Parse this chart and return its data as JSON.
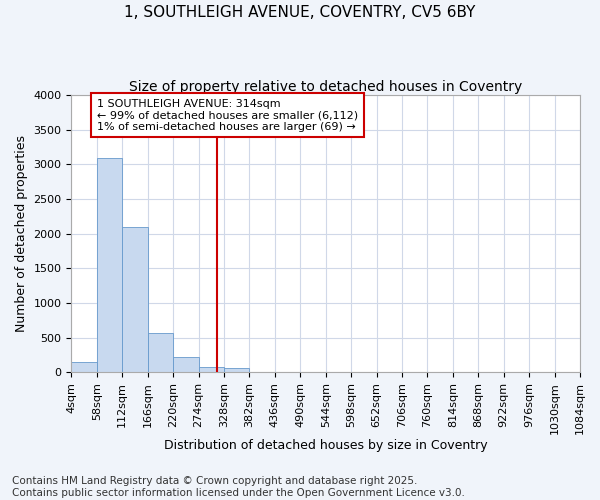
{
  "title_line1": "1, SOUTHLEIGH AVENUE, COVENTRY, CV5 6BY",
  "title_line2": "Size of property relative to detached houses in Coventry",
  "xlabel": "Distribution of detached houses by size in Coventry",
  "ylabel": "Number of detached properties",
  "footer_line1": "Contains HM Land Registry data © Crown copyright and database right 2025.",
  "footer_line2": "Contains public sector information licensed under the Open Government Licence v3.0.",
  "bins": [
    4,
    58,
    112,
    166,
    220,
    274,
    328,
    382,
    436,
    490,
    544,
    598,
    652,
    706,
    760,
    814,
    868,
    922,
    976,
    1030,
    1084
  ],
  "bin_labels": [
    "4sqm",
    "58sqm",
    "112sqm",
    "166sqm",
    "220sqm",
    "274sqm",
    "328sqm",
    "382sqm",
    "436sqm",
    "490sqm",
    "544sqm",
    "598sqm",
    "652sqm",
    "706sqm",
    "760sqm",
    "814sqm",
    "868sqm",
    "922sqm",
    "976sqm",
    "1030sqm",
    "1084sqm"
  ],
  "values": [
    150,
    3100,
    2100,
    570,
    220,
    80,
    55,
    0,
    0,
    0,
    0,
    0,
    0,
    0,
    0,
    0,
    0,
    0,
    0,
    0
  ],
  "bar_color": "#c8d9ef",
  "bar_edge_color": "#6699cc",
  "property_size": 314,
  "vline_color": "#cc0000",
  "annotation_text": "1 SOUTHLEIGH AVENUE: 314sqm\n← 99% of detached houses are smaller (6,112)\n1% of semi-detached houses are larger (69) →",
  "annotation_box_color": "#ffffff",
  "annotation_box_edge_color": "#cc0000",
  "ylim": [
    0,
    4000
  ],
  "yticks": [
    0,
    500,
    1000,
    1500,
    2000,
    2500,
    3000,
    3500,
    4000
  ],
  "plot_bg_color": "#ffffff",
  "fig_bg_color": "#f0f4fa",
  "grid_color": "#d0d8e8",
  "title_fontsize": 11,
  "subtitle_fontsize": 10,
  "axis_label_fontsize": 9,
  "tick_fontsize": 8,
  "annotation_fontsize": 8,
  "footer_fontsize": 7.5
}
